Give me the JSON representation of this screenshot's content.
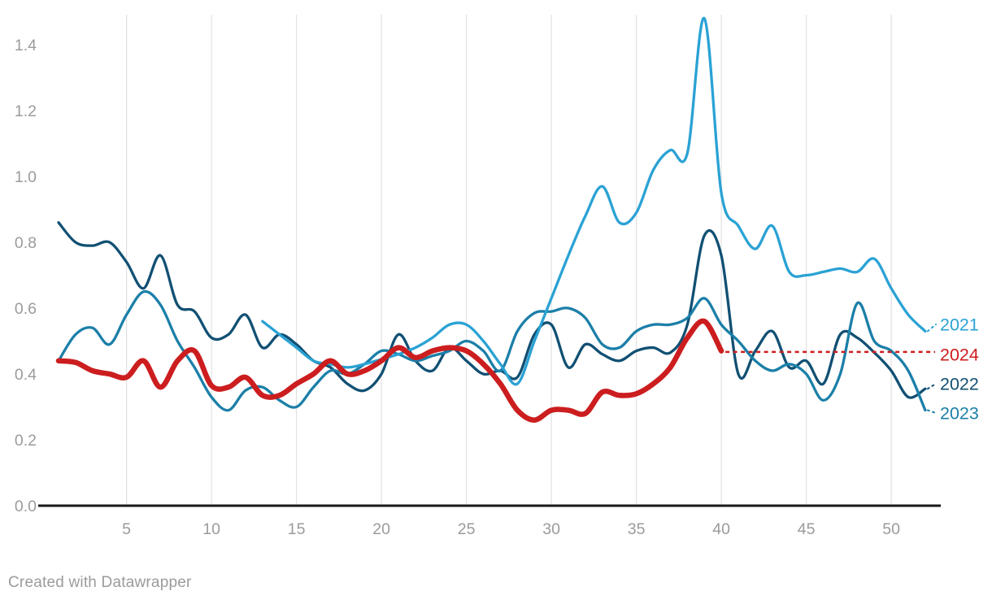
{
  "footer": {
    "credit": "Created with Datawrapper"
  },
  "colors": {
    "series_2021": "#2aa2d4",
    "series_2022": "#115073",
    "series_2023": "#1b7fa8",
    "series_2024": "#cc1d1f",
    "grid": "#e2e2e2",
    "axis_line": "#18181a",
    "tick_text": "#9b9b9b"
  },
  "chart_data": {
    "type": "line",
    "title": "",
    "xlabel": "",
    "ylabel": "",
    "grid": "vertical-only",
    "legend_position": "right-edge-direct-labels",
    "x": {
      "unit": "week-of-year",
      "min": 1,
      "max": 52,
      "ticks": [
        5,
        10,
        15,
        20,
        25,
        30,
        35,
        40,
        45,
        50
      ]
    },
    "y": {
      "min": 0.0,
      "max": 1.48,
      "ticks": [
        0,
        0.2,
        0.4,
        0.6,
        0.8,
        1.0,
        1.2,
        1.4
      ],
      "tick_labels": [
        "0.0",
        "0.2",
        "0.4",
        "0.6",
        "0.8",
        "1.0",
        "1.2",
        "1.4"
      ]
    },
    "series": [
      {
        "name": "2022",
        "color": "#115073",
        "width": 3.3,
        "start_week": 1,
        "values": [
          0.86,
          0.8,
          0.79,
          0.8,
          0.74,
          0.66,
          0.76,
          0.61,
          0.59,
          0.51,
          0.52,
          0.58,
          0.48,
          0.52,
          0.49,
          0.44,
          0.42,
          0.37,
          0.35,
          0.4,
          0.52,
          0.44,
          0.41,
          0.48,
          0.44,
          0.4,
          0.41,
          0.39,
          0.52,
          0.55,
          0.42,
          0.49,
          0.46,
          0.44,
          0.47,
          0.48,
          0.465,
          0.55,
          0.82,
          0.76,
          0.4,
          0.47,
          0.53,
          0.42,
          0.44,
          0.37,
          0.52,
          0.51,
          0.465,
          0.41,
          0.33,
          0.355
        ]
      },
      {
        "name": "2023",
        "color": "#1b7fa8",
        "width": 3.3,
        "start_week": 1,
        "values": [
          0.44,
          0.52,
          0.54,
          0.49,
          0.58,
          0.65,
          0.61,
          0.5,
          0.42,
          0.33,
          0.29,
          0.35,
          0.36,
          0.32,
          0.3,
          0.36,
          0.41,
          0.4,
          0.43,
          0.47,
          0.46,
          0.44,
          0.455,
          0.47,
          0.5,
          0.47,
          0.41,
          0.53,
          0.585,
          0.59,
          0.6,
          0.57,
          0.49,
          0.48,
          0.53,
          0.55,
          0.55,
          0.57,
          0.63,
          0.55,
          0.5,
          0.44,
          0.41,
          0.43,
          0.4,
          0.32,
          0.4,
          0.615,
          0.5,
          0.47,
          0.41,
          0.29
        ]
      },
      {
        "name": "2021",
        "color": "#2aa2d4",
        "width": 3.3,
        "start_week": 13,
        "values": [
          0.56,
          0.52,
          0.48,
          0.44,
          0.43,
          0.42,
          0.43,
          0.445,
          0.46,
          0.48,
          0.51,
          0.55,
          0.55,
          0.5,
          0.43,
          0.37,
          0.5,
          0.63,
          0.76,
          0.88,
          0.97,
          0.86,
          0.89,
          1.02,
          1.08,
          1.07,
          1.48,
          0.95,
          0.85,
          0.78,
          0.85,
          0.71,
          0.7,
          0.71,
          0.72,
          0.71,
          0.75,
          0.66,
          0.58,
          0.53
        ]
      },
      {
        "name": "2024",
        "color": "#cc1d1f",
        "width": 6.5,
        "start_week": 1,
        "values": [
          0.44,
          0.435,
          0.41,
          0.4,
          0.39,
          0.44,
          0.36,
          0.44,
          0.47,
          0.365,
          0.36,
          0.39,
          0.335,
          0.335,
          0.37,
          0.4,
          0.44,
          0.4,
          0.41,
          0.44,
          0.48,
          0.45,
          0.47,
          0.48,
          0.47,
          0.43,
          0.37,
          0.29,
          0.26,
          0.29,
          0.29,
          0.28,
          0.345,
          0.335,
          0.34,
          0.37,
          0.42,
          0.51,
          0.56,
          0.47
        ],
        "dashed_reference": {
          "style": "dashed",
          "value": 0.467,
          "from_week": 40,
          "note": "red dotted horizontal line extending to label"
        }
      }
    ]
  }
}
